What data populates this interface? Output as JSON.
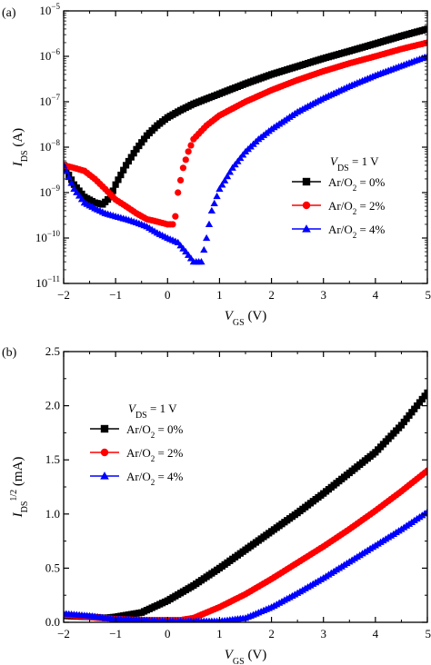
{
  "chart_data": [
    {
      "panel_label": "(a)",
      "type": "scatter",
      "y_scale": "log",
      "xlim": [
        -2,
        5
      ],
      "ylim": [
        1e-11,
        1e-05
      ],
      "x_ticks": [
        -2,
        -1,
        0,
        1,
        2,
        3,
        4,
        5
      ],
      "x_tick_labels": [
        "−2",
        "−1",
        "0",
        "1",
        "2",
        "3",
        "4",
        "5"
      ],
      "y_ticks": [
        1e-11,
        1e-10,
        1e-09,
        1e-08,
        1e-07,
        1e-06,
        1e-05
      ],
      "y_tick_labels": [
        {
          "base": "10",
          "exp": "−11"
        },
        {
          "base": "10",
          "exp": "−10"
        },
        {
          "base": "10",
          "exp": "−9"
        },
        {
          "base": "10",
          "exp": "−8"
        },
        {
          "base": "10",
          "exp": "−7"
        },
        {
          "base": "10",
          "exp": "−6"
        },
        {
          "base": "10",
          "exp": "−5"
        }
      ],
      "xlabel": {
        "main": "V",
        "sub": "GS",
        "rest": " (V)"
      },
      "ylabel": {
        "main": "I",
        "sub": "DS",
        "rest": " (A)"
      },
      "legend": {
        "position": "right-middle",
        "header": {
          "main": "V",
          "sub": "DS",
          "rest": " =  1 V"
        }
      },
      "series": [
        {
          "name": {
            "pre": "Ar/O",
            "sub": "2",
            "post": " = 0%"
          },
          "color": "#000000",
          "marker": "square",
          "points": [
            [
              -2,
              4e-09
            ],
            [
              -1.8,
              1.5e-09
            ],
            [
              -1.6,
              8e-10
            ],
            [
              -1.4,
              6e-10
            ],
            [
              -1.25,
              5.5e-10
            ],
            [
              -1.1,
              8e-10
            ],
            [
              -1.0,
              1.5e-09
            ],
            [
              -0.8,
              4e-09
            ],
            [
              -0.6,
              9e-09
            ],
            [
              -0.4,
              1.8e-08
            ],
            [
              -0.2,
              3e-08
            ],
            [
              0,
              4.5e-08
            ],
            [
              0.25,
              6.5e-08
            ],
            [
              0.5,
              9e-08
            ],
            [
              1,
              1.5e-07
            ],
            [
              1.5,
              2.5e-07
            ],
            [
              2,
              4e-07
            ],
            [
              2.5,
              6e-07
            ],
            [
              3,
              9e-07
            ],
            [
              3.5,
              1.3e-06
            ],
            [
              4,
              1.9e-06
            ],
            [
              4.5,
              2.8e-06
            ],
            [
              5,
              4e-06
            ]
          ]
        },
        {
          "name": {
            "pre": "Ar/O",
            "sub": "2",
            "post": " = 2%"
          },
          "color": "#ff0000",
          "marker": "circle",
          "points": [
            [
              -2,
              4e-09
            ],
            [
              -1.8,
              3.5e-09
            ],
            [
              -1.6,
              3e-09
            ],
            [
              -1.4,
              2e-09
            ],
            [
              -1.2,
              1.2e-09
            ],
            [
              -1.0,
              7e-10
            ],
            [
              -0.8,
              5e-10
            ],
            [
              -0.6,
              3.5e-10
            ],
            [
              -0.4,
              2.6e-10
            ],
            [
              -0.2,
              2.3e-10
            ],
            [
              0,
              2e-10
            ],
            [
              0.1,
              2e-10
            ],
            [
              0.15,
              3e-10
            ],
            [
              0.2,
              1e-09
            ],
            [
              0.3,
              3.5e-09
            ],
            [
              0.4,
              8e-09
            ],
            [
              0.5,
              1.5e-08
            ],
            [
              0.75,
              3e-08
            ],
            [
              1,
              5e-08
            ],
            [
              1.5,
              1e-07
            ],
            [
              2,
              1.8e-07
            ],
            [
              2.5,
              3e-07
            ],
            [
              3,
              4.7e-07
            ],
            [
              3.5,
              7e-07
            ],
            [
              4,
              1e-06
            ],
            [
              4.5,
              1.45e-06
            ],
            [
              5,
              2e-06
            ]
          ]
        },
        {
          "name": {
            "pre": "Ar/O",
            "sub": "2",
            "post": " = 4%"
          },
          "color": "#0000ff",
          "marker": "triangle",
          "points": [
            [
              -2,
              4e-09
            ],
            [
              -1.8,
              1.2e-09
            ],
            [
              -1.6,
              6e-10
            ],
            [
              -1.4,
              4.5e-10
            ],
            [
              -1.2,
              3.5e-10
            ],
            [
              -1.0,
              3e-10
            ],
            [
              -0.8,
              2.6e-10
            ],
            [
              -0.6,
              2.2e-10
            ],
            [
              -0.4,
              1.8e-10
            ],
            [
              -0.2,
              1.3e-10
            ],
            [
              0,
              1e-10
            ],
            [
              0.2,
              8e-11
            ],
            [
              0.35,
              5e-11
            ],
            [
              0.5,
              3e-11
            ],
            [
              0.65,
              3e-11
            ],
            [
              0.75,
              1e-10
            ],
            [
              0.85,
              4e-10
            ],
            [
              1,
              1.2e-09
            ],
            [
              1.25,
              3.5e-09
            ],
            [
              1.5,
              8e-09
            ],
            [
              1.75,
              1.5e-08
            ],
            [
              2,
              2.5e-08
            ],
            [
              2.5,
              6e-08
            ],
            [
              3,
              1.2e-07
            ],
            [
              3.5,
              2.2e-07
            ],
            [
              4,
              3.8e-07
            ],
            [
              4.5,
              6.2e-07
            ],
            [
              5,
              1e-06
            ]
          ]
        }
      ]
    },
    {
      "panel_label": "(b)",
      "type": "scatter",
      "xlim": [
        -2,
        5
      ],
      "ylim": [
        0,
        2.5
      ],
      "x_ticks": [
        -2,
        -1,
        0,
        1,
        2,
        3,
        4,
        5
      ],
      "x_tick_labels": [
        "−2",
        "−1",
        "0",
        "1",
        "2",
        "3",
        "4",
        "5"
      ],
      "y_ticks": [
        0,
        0.5,
        1.0,
        1.5,
        2.0,
        2.5
      ],
      "y_tick_labels": [
        "0.0",
        "0.5",
        "1.0",
        "1.5",
        "2.0",
        "2.5"
      ],
      "xlabel": {
        "main": "V",
        "sub": "GS",
        "rest": " (V)"
      },
      "ylabel": {
        "main": "I",
        "sub": "DS",
        "sup": "1/2",
        "rest": " (mA)"
      },
      "legend": {
        "position": "top-left",
        "header": {
          "main": "V",
          "sub": "DS",
          "rest": " = 1 V"
        }
      },
      "series": [
        {
          "name": {
            "pre": "Ar/O",
            "sub": "2",
            "post": " = 0%"
          },
          "color": "#000000",
          "marker": "square",
          "points": [
            [
              -2,
              0.06
            ],
            [
              -1.5,
              0.05
            ],
            [
              -1.2,
              0.04
            ],
            [
              -1,
              0.05
            ],
            [
              -0.5,
              0.09
            ],
            [
              0,
              0.2
            ],
            [
              0.5,
              0.34
            ],
            [
              1,
              0.5
            ],
            [
              1.5,
              0.67
            ],
            [
              2,
              0.84
            ],
            [
              2.5,
              1.01
            ],
            [
              3,
              1.19
            ],
            [
              3.5,
              1.38
            ],
            [
              4,
              1.57
            ],
            [
              4.5,
              1.82
            ],
            [
              5,
              2.12
            ]
          ]
        },
        {
          "name": {
            "pre": "Ar/O",
            "sub": "2",
            "post": " = 2%"
          },
          "color": "#ff0000",
          "marker": "circle",
          "points": [
            [
              -2,
              0.07
            ],
            [
              -1.5,
              0.05
            ],
            [
              -1,
              0.03
            ],
            [
              -0.5,
              0.02
            ],
            [
              0,
              0.02
            ],
            [
              0.25,
              0.02
            ],
            [
              0.5,
              0.04
            ],
            [
              1,
              0.14
            ],
            [
              1.5,
              0.26
            ],
            [
              2,
              0.4
            ],
            [
              2.5,
              0.55
            ],
            [
              3,
              0.7
            ],
            [
              3.5,
              0.86
            ],
            [
              4,
              1.03
            ],
            [
              4.5,
              1.21
            ],
            [
              5,
              1.4
            ]
          ]
        },
        {
          "name": {
            "pre": "Ar/O",
            "sub": "2",
            "post": " = 4%"
          },
          "color": "#0000ff",
          "marker": "triangle",
          "points": [
            [
              -2,
              0.08
            ],
            [
              -1.5,
              0.06
            ],
            [
              -1.2,
              0.04
            ],
            [
              -1,
              0.03
            ],
            [
              -0.5,
              0.02
            ],
            [
              0,
              0.01
            ],
            [
              0.5,
              0.01
            ],
            [
              1,
              0.01
            ],
            [
              1.5,
              0.04
            ],
            [
              2,
              0.14
            ],
            [
              2.5,
              0.27
            ],
            [
              3,
              0.41
            ],
            [
              3.5,
              0.56
            ],
            [
              4,
              0.71
            ],
            [
              4.5,
              0.86
            ],
            [
              5,
              1.02
            ]
          ]
        }
      ]
    }
  ]
}
